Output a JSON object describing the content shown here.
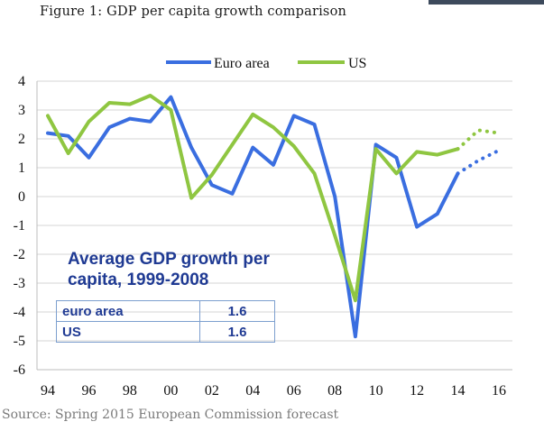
{
  "figure_title": "Figure 1: GDP per capita growth comparison",
  "source": "Source: Spring 2015 European Commission forecast",
  "chart_data": {
    "type": "line",
    "title": "Figure 1: GDP per capita growth comparison",
    "xlabel": "",
    "ylabel": "",
    "ylim": [
      -6,
      4
    ],
    "yticks": [
      "4",
      "3",
      "2",
      "1",
      "0",
      "-1",
      "-2",
      "-3",
      "-4",
      "-5",
      "-6"
    ],
    "xticks": [
      "94",
      "96",
      "98",
      "00",
      "02",
      "04",
      "06",
      "08",
      "10",
      "12",
      "14",
      "16"
    ],
    "grid": true,
    "legend": "top-center",
    "x": [
      1994,
      1995,
      1996,
      1997,
      1998,
      1999,
      2000,
      2001,
      2002,
      2003,
      2004,
      2005,
      2006,
      2007,
      2008,
      2009,
      2010,
      2011,
      2012,
      2013,
      2014,
      2015,
      2016
    ],
    "series": [
      {
        "name": "Euro area",
        "color": "#3a6ee0",
        "values": [
          2.2,
          2.1,
          1.35,
          2.4,
          2.7,
          2.6,
          3.45,
          1.7,
          0.4,
          0.1,
          1.7,
          1.1,
          2.8,
          2.5,
          0.0,
          -4.85,
          1.8,
          1.35,
          -1.05,
          -0.6,
          0.8,
          1.25,
          1.6
        ],
        "forecast_from": 2014
      },
      {
        "name": "US",
        "color": "#8fc641",
        "values": [
          2.8,
          1.5,
          2.6,
          3.25,
          3.2,
          3.5,
          3.0,
          -0.05,
          0.75,
          1.8,
          2.85,
          2.4,
          1.75,
          0.8,
          -1.35,
          -3.6,
          1.65,
          0.8,
          1.55,
          1.45,
          1.65,
          2.3,
          2.2
        ],
        "forecast_from": 2014
      }
    ],
    "inset": {
      "title": "Average GDP growth per capita, 1999-2008",
      "rows": [
        {
          "label": "euro area",
          "value": "1.6"
        },
        {
          "label": "US",
          "value": "1.6"
        }
      ]
    }
  }
}
